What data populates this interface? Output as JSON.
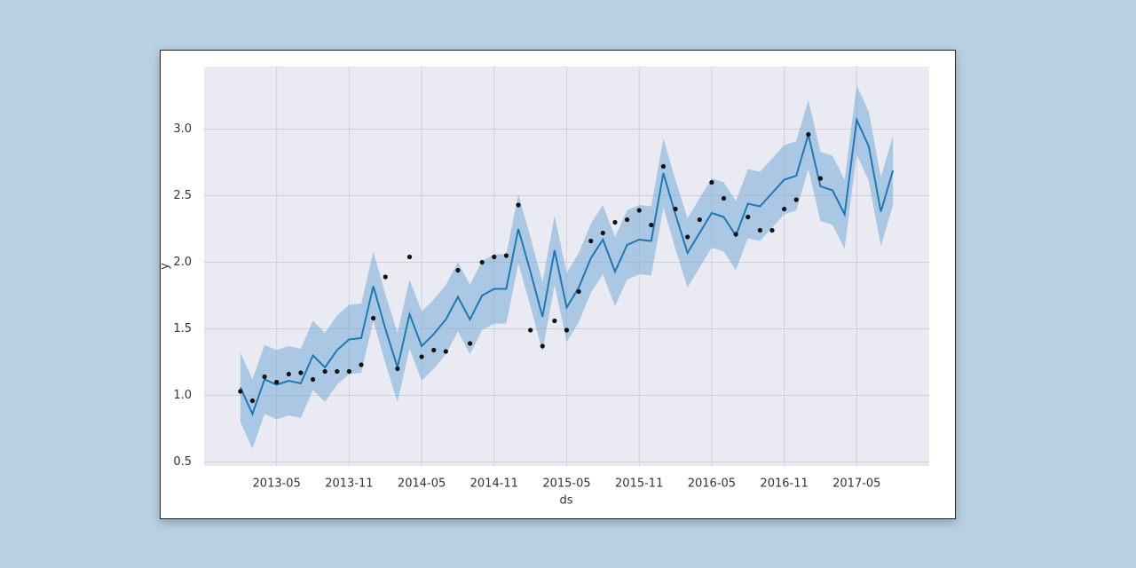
{
  "chart_data": {
    "type": "forecast",
    "x_label": "ds",
    "y_label": "y",
    "x": [
      "2013-02",
      "2013-03",
      "2013-04",
      "2013-05",
      "2013-06",
      "2013-07",
      "2013-08",
      "2013-09",
      "2013-10",
      "2013-11",
      "2013-12",
      "2014-01",
      "2014-02",
      "2014-03",
      "2014-04",
      "2014-05",
      "2014-06",
      "2014-07",
      "2014-08",
      "2014-09",
      "2014-10",
      "2014-11",
      "2014-12",
      "2015-01",
      "2015-02",
      "2015-03",
      "2015-04",
      "2015-05",
      "2015-06",
      "2015-07",
      "2015-08",
      "2015-09",
      "2015-10",
      "2015-11",
      "2015-12",
      "2016-01",
      "2016-02",
      "2016-03",
      "2016-04",
      "2016-05",
      "2016-06",
      "2016-07",
      "2016-08",
      "2016-09",
      "2016-10",
      "2016-11",
      "2016-12",
      "2017-01",
      "2017-02",
      "2017-03",
      "2017-04",
      "2017-05",
      "2017-06",
      "2017-07",
      "2017-08"
    ],
    "y": [
      1.03,
      0.96,
      1.14,
      1.1,
      1.16,
      1.17,
      1.12,
      1.18,
      1.18,
      1.18,
      1.23,
      1.58,
      1.89,
      1.2,
      2.04,
      1.29,
      1.34,
      1.33,
      1.94,
      1.39,
      2.0,
      2.04,
      2.05,
      2.43,
      1.49,
      1.37,
      1.56,
      1.49,
      1.78,
      2.16,
      2.22,
      2.3,
      2.32,
      2.39,
      2.28,
      2.72,
      2.4,
      2.19,
      2.32,
      2.6,
      2.48,
      2.21,
      2.34,
      2.24,
      2.24,
      2.4,
      2.47,
      2.96,
      2.63,
      null,
      null,
      null,
      null,
      null,
      null
    ],
    "yhat": [
      1.06,
      0.86,
      1.12,
      1.08,
      1.11,
      1.09,
      1.3,
      1.21,
      1.34,
      1.42,
      1.43,
      1.82,
      1.5,
      1.21,
      1.61,
      1.37,
      1.46,
      1.57,
      1.74,
      1.57,
      1.75,
      1.8,
      1.8,
      2.25,
      1.93,
      1.59,
      2.09,
      1.66,
      1.81,
      2.03,
      2.17,
      1.93,
      2.13,
      2.17,
      2.16,
      2.67,
      2.36,
      2.07,
      2.22,
      2.37,
      2.34,
      2.2,
      2.44,
      2.42,
      2.52,
      2.62,
      2.65,
      2.96,
      2.57,
      2.54,
      2.36,
      3.07,
      2.87,
      2.38,
      2.69
    ],
    "yhat_lower": [
      0.8,
      0.6,
      0.86,
      0.82,
      0.85,
      0.83,
      1.04,
      0.95,
      1.08,
      1.16,
      1.17,
      1.56,
      1.24,
      0.95,
      1.35,
      1.11,
      1.2,
      1.31,
      1.48,
      1.31,
      1.49,
      1.54,
      1.54,
      1.99,
      1.67,
      1.33,
      1.83,
      1.4,
      1.55,
      1.77,
      1.91,
      1.67,
      1.87,
      1.91,
      1.9,
      2.41,
      2.1,
      1.81,
      1.96,
      2.11,
      2.08,
      1.94,
      2.18,
      2.16,
      2.26,
      2.36,
      2.39,
      2.7,
      2.31,
      2.28,
      2.1,
      2.81,
      2.61,
      2.12,
      2.43
    ],
    "yhat_upper": [
      1.32,
      1.12,
      1.38,
      1.34,
      1.37,
      1.35,
      1.56,
      1.47,
      1.6,
      1.68,
      1.69,
      2.08,
      1.76,
      1.47,
      1.87,
      1.63,
      1.72,
      1.83,
      2.0,
      1.83,
      2.01,
      2.06,
      2.06,
      2.51,
      2.19,
      1.85,
      2.35,
      1.92,
      2.07,
      2.29,
      2.43,
      2.19,
      2.39,
      2.43,
      2.42,
      2.93,
      2.62,
      2.33,
      2.48,
      2.63,
      2.6,
      2.46,
      2.7,
      2.68,
      2.78,
      2.88,
      2.91,
      3.22,
      2.83,
      2.8,
      2.62,
      3.33,
      3.13,
      2.64,
      2.95
    ],
    "point_color": "#111111",
    "line_color": "#1f77b4",
    "band_color": "#7fb0d8",
    "xlim": [
      "2012-11",
      "2017-11"
    ],
    "xticks": [
      "2013-05",
      "2013-11",
      "2014-05",
      "2014-11",
      "2015-05",
      "2015-11",
      "2016-05",
      "2016-11",
      "2017-05"
    ],
    "ylim": [
      0.47,
      3.47
    ],
    "yticks": [
      0.5,
      {
        "value": 1,
        "label": "1.0"
      },
      1.5,
      {
        "value": 2,
        "label": "2.0"
      },
      2.5,
      {
        "value": 3,
        "label": "3.0"
      }
    ],
    "grid": true
  }
}
